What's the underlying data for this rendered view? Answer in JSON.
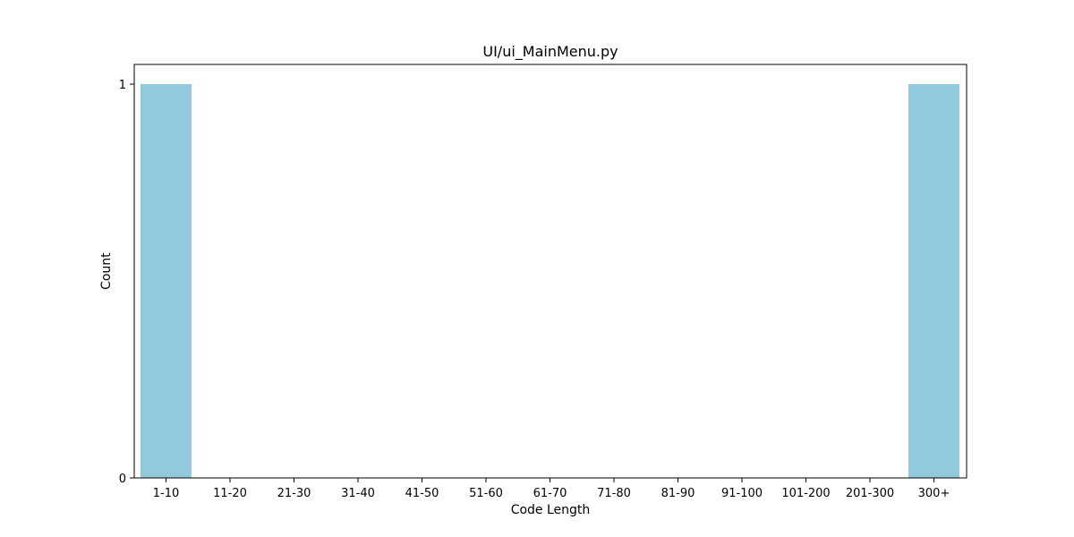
{
  "chart_data": {
    "type": "bar",
    "title": "UI/ui_MainMenu.py",
    "xlabel": "Code Length",
    "ylabel": "Count",
    "categories": [
      "1-10",
      "11-20",
      "21-30",
      "31-40",
      "41-50",
      "51-60",
      "61-70",
      "71-80",
      "81-90",
      "91-100",
      "101-200",
      "201-300",
      "300+"
    ],
    "values": [
      1,
      0,
      0,
      0,
      0,
      0,
      0,
      0,
      0,
      0,
      0,
      0,
      1
    ],
    "ylim": [
      0,
      1.05
    ],
    "yticks": [
      "0",
      "1"
    ],
    "grid": false,
    "bar_color": "#92c9de"
  }
}
